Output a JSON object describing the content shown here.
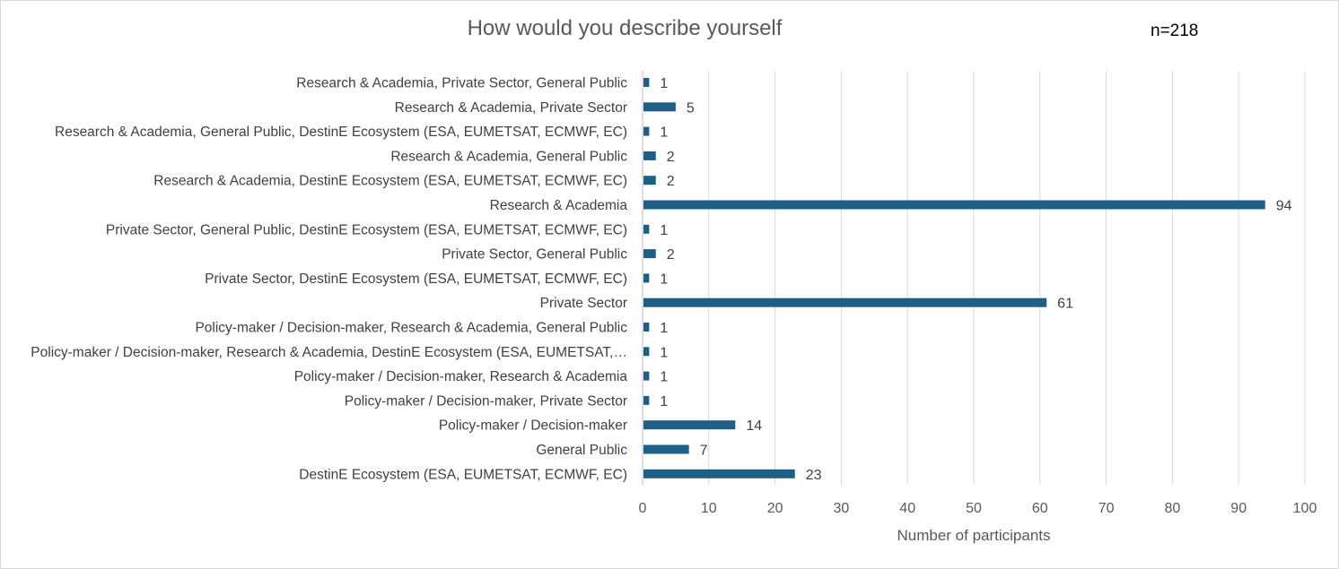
{
  "chart_data": {
    "type": "bar",
    "orientation": "horizontal",
    "title": "How would you describe yourself",
    "annotation": "n=218",
    "xlabel": "Number of participants",
    "ylabel": "",
    "xlim": [
      0,
      100
    ],
    "x_ticks": [
      0,
      10,
      20,
      30,
      40,
      50,
      60,
      70,
      80,
      90,
      100
    ],
    "grid": "vertical",
    "bar_color": "#1f5f85",
    "categories": [
      "Research & Academia, Private Sector, General Public",
      "Research & Academia, Private Sector",
      "Research & Academia, General Public, DestinE Ecosystem (ESA, EUMETSAT, ECMWF, EC)",
      "Research & Academia, General Public",
      "Research & Academia, DestinE Ecosystem (ESA, EUMETSAT, ECMWF, EC)",
      "Research & Academia",
      "Private Sector, General Public, DestinE Ecosystem (ESA, EUMETSAT, ECMWF, EC)",
      "Private Sector, General Public",
      "Private Sector, DestinE Ecosystem (ESA, EUMETSAT, ECMWF, EC)",
      "Private Sector",
      "Policy-maker / Decision-maker, Research & Academia, General Public",
      "Policy-maker / Decision-maker, Research & Academia, DestinE Ecosystem (ESA, EUMETSAT,…",
      "Policy-maker / Decision-maker, Research & Academia",
      "Policy-maker / Decision-maker, Private Sector",
      "Policy-maker / Decision-maker",
      "General Public",
      "DestinE Ecosystem (ESA, EUMETSAT, ECMWF, EC)"
    ],
    "values": [
      1,
      5,
      1,
      2,
      2,
      94,
      1,
      2,
      1,
      61,
      1,
      1,
      1,
      1,
      14,
      7,
      23
    ]
  }
}
